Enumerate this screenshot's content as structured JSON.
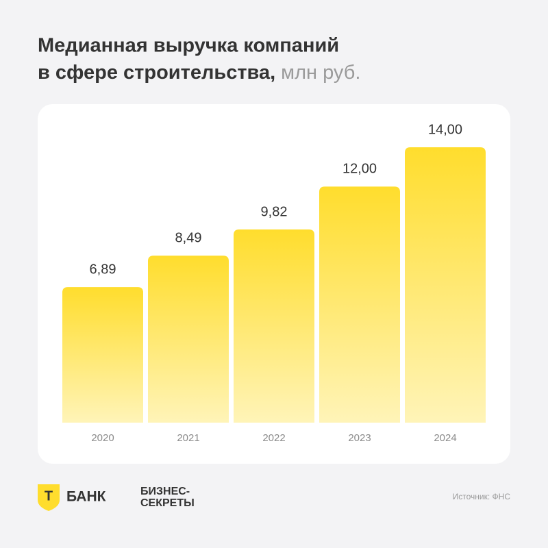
{
  "chart_data": {
    "type": "bar",
    "title": [
      "Медианная выручка компаний",
      "в сфере строительства,"
    ],
    "subtitle": "млн руб.",
    "categories": [
      "2020",
      "2021",
      "2022",
      "2023",
      "2024"
    ],
    "values": [
      6.89,
      8.49,
      9.82,
      12.0,
      14.0
    ],
    "value_labels": [
      "6,89",
      "8,49",
      "9,82",
      "12,00",
      "14,00"
    ],
    "color": "#ffdd2d",
    "ylim": [
      0,
      14
    ]
  },
  "footer": {
    "logo_mark": "Т",
    "bank": "БАНК",
    "partner": [
      "БИЗНЕС-",
      "СЕКРЕТЫ"
    ],
    "source": "Источник: ФНС"
  }
}
